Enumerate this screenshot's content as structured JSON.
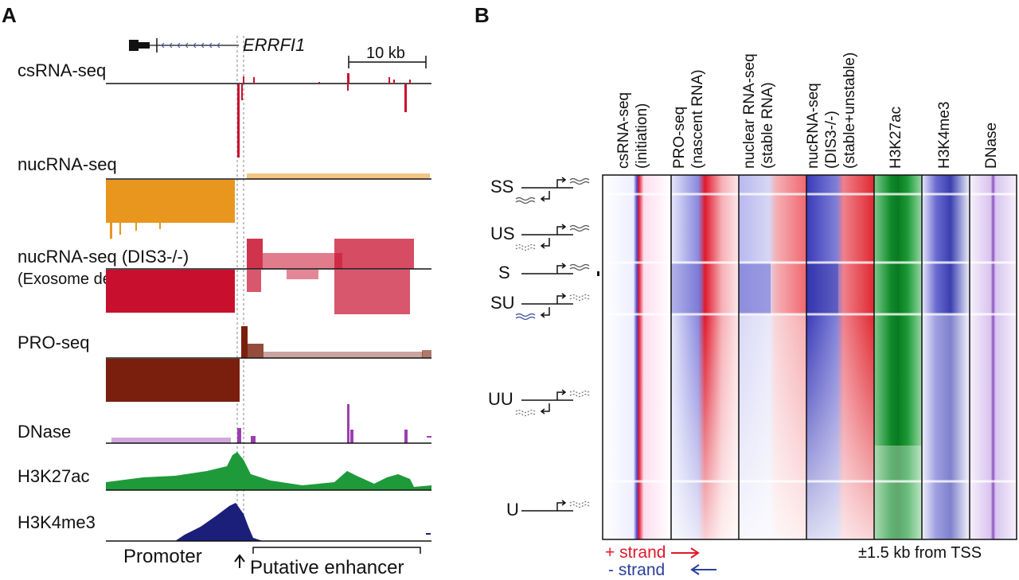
{
  "panelA": {
    "letter": "A",
    "gene": "ERRFI1",
    "scale": "10 kb",
    "tracks": [
      {
        "label": "csRNA-seq",
        "color": "#c8102e"
      },
      {
        "label": "nucRNA-seq",
        "color": "#e8961e"
      },
      {
        "label": "nucRNA-seq (DIS3-/-)",
        "sublabel": "(Exosome depletion)",
        "color": "#c8102e"
      },
      {
        "label": "PRO-seq",
        "color": "#7a1f0e"
      },
      {
        "label": "DNase",
        "color": "#9b3fb0"
      },
      {
        "label": "H3K27ac",
        "color": "#1f9a3a"
      },
      {
        "label": "H3K4me3",
        "color": "#1b1f7a"
      }
    ],
    "promoter_label": "Promoter",
    "enhancer_label": "Putative enhancer"
  },
  "panelB": {
    "letter": "B",
    "columns": [
      {
        "lines": [
          "csRNA-seq",
          "(initiation)"
        ]
      },
      {
        "lines": [
          "PRO-seq",
          "(nascent RNA)"
        ]
      },
      {
        "lines": [
          "nuclear RNA-seq",
          "(stable RNA)"
        ]
      },
      {
        "lines": [
          "nucRNA-seq",
          "(DIS3-/-)",
          "(stable+unstable)"
        ]
      },
      {
        "lines": [
          "H3K27ac"
        ]
      },
      {
        "lines": [
          "H3K4me3"
        ]
      },
      {
        "lines": [
          "DNase"
        ]
      }
    ],
    "classes": [
      "SS",
      "US",
      "S",
      "SU",
      "UU",
      "U"
    ],
    "plus_strand": "+ strand",
    "minus_strand": "- strand",
    "range_note": "±1.5 kb from TSS",
    "colors": {
      "plus": "#e0192b",
      "minus": "#2a3f9a",
      "h3k27ac": "#0f8a2a",
      "h3k4me3": "#3a3fb0",
      "dnase": "#8a4fc0"
    }
  }
}
